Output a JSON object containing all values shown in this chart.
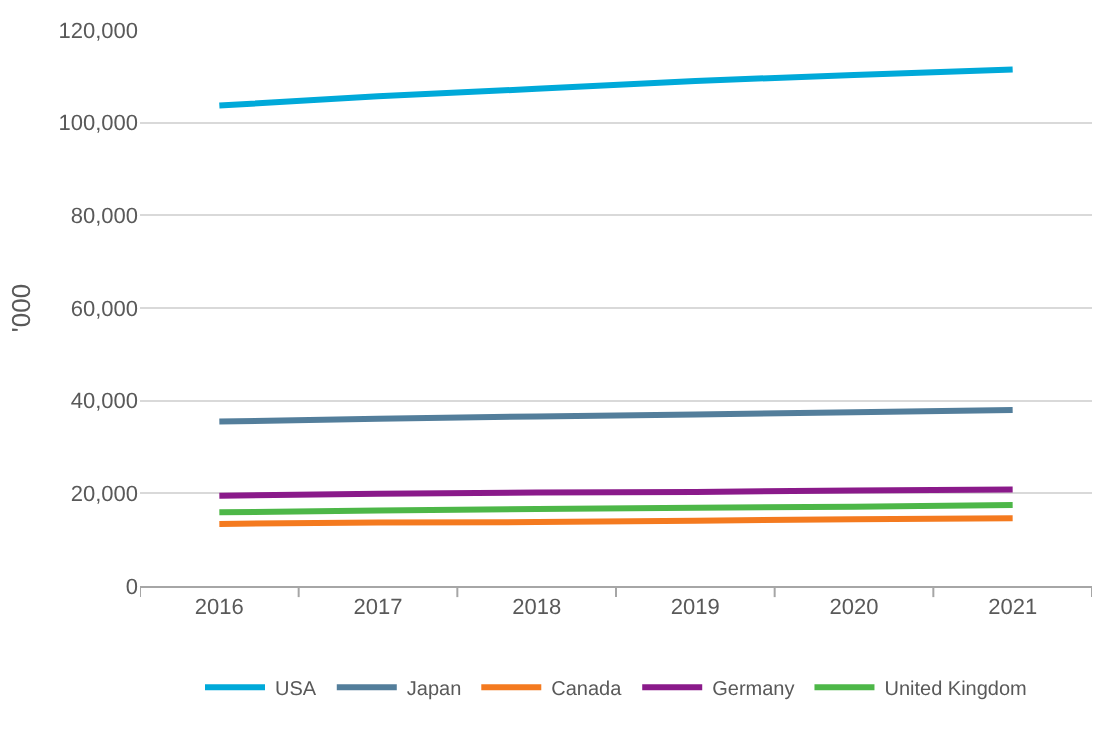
{
  "chart_data": {
    "type": "line",
    "ylabel": "'000",
    "categories": [
      "2016",
      "2017",
      "2018",
      "2019",
      "2020",
      "2021"
    ],
    "series": [
      {
        "name": "USA",
        "color": "#00a9d9",
        "values": [
          103700,
          105700,
          107300,
          109000,
          110300,
          111500
        ]
      },
      {
        "name": "Japan",
        "color": "#537e9b",
        "values": [
          35500,
          36100,
          36600,
          37000,
          37500,
          38000
        ]
      },
      {
        "name": "Canada",
        "color": "#f47a1f",
        "values": [
          13400,
          13700,
          13800,
          14100,
          14400,
          14600
        ]
      },
      {
        "name": "Germany",
        "color": "#8a1a8a",
        "values": [
          19500,
          19900,
          20200,
          20300,
          20600,
          20800
        ]
      },
      {
        "name": "United Kingdom",
        "color": "#4db748",
        "values": [
          15900,
          16300,
          16600,
          16900,
          17100,
          17500
        ]
      }
    ],
    "ylim": [
      0,
      120000
    ],
    "yticks": [
      {
        "value": 0,
        "label": "0"
      },
      {
        "value": 20000,
        "label": "20,000"
      },
      {
        "value": 40000,
        "label": "40,000"
      },
      {
        "value": 60000,
        "label": "60,000"
      },
      {
        "value": 80000,
        "label": "80,000"
      },
      {
        "value": 100000,
        "label": "100,000"
      },
      {
        "value": 120000,
        "label": "120,000"
      }
    ],
    "grid": "y",
    "legend": "bottom",
    "marker": "none",
    "line_style": "solid"
  }
}
